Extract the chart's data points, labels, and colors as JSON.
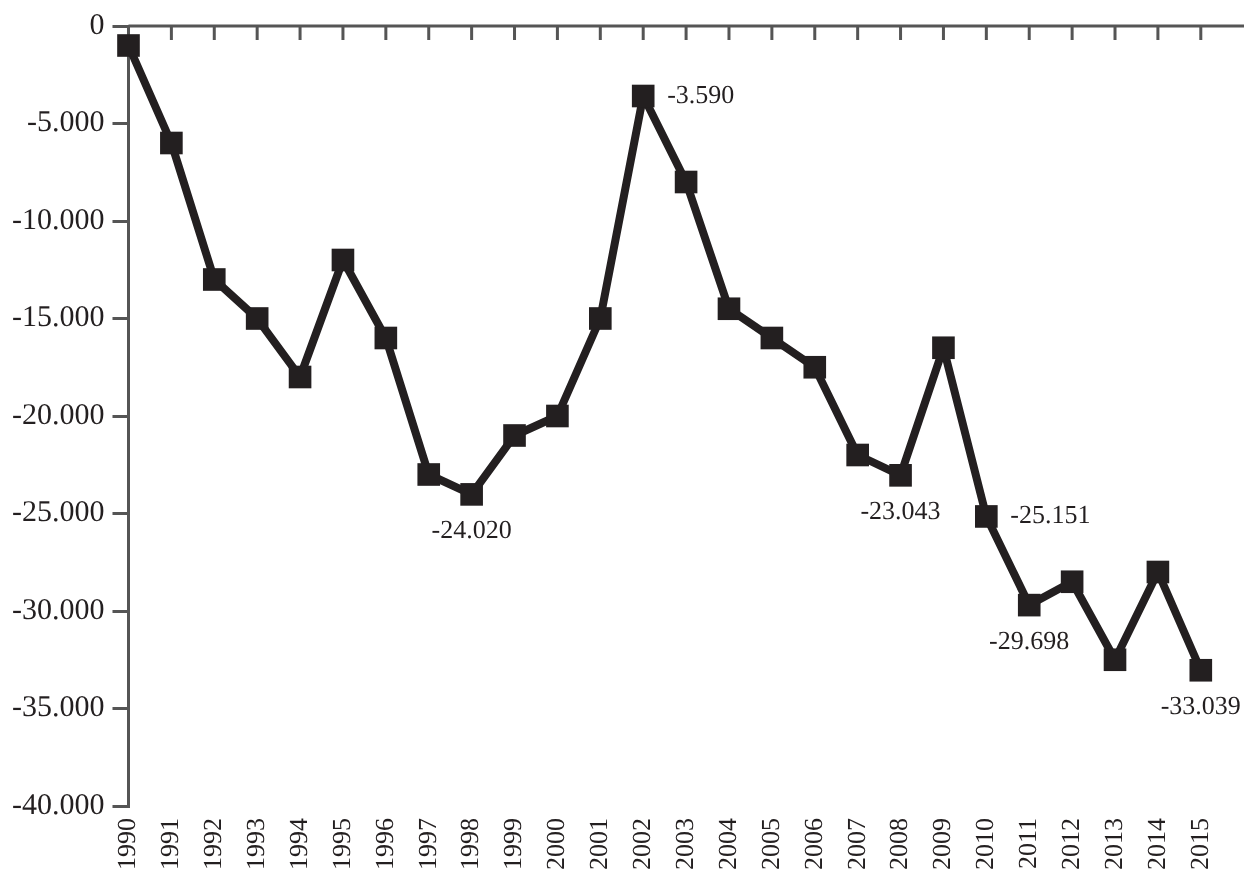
{
  "chart_data": {
    "type": "line",
    "categories": [
      "1990",
      "1991",
      "1992",
      "1993",
      "1994",
      "1995",
      "1996",
      "1997",
      "1998",
      "1999",
      "2000",
      "2001",
      "2002",
      "2003",
      "2004",
      "2005",
      "2006",
      "2007",
      "2008",
      "2009",
      "2010",
      "2011",
      "2012",
      "2013",
      "2014",
      "2015"
    ],
    "series": [
      {
        "color": "#231f20",
        "values": [
          -1000,
          -6000,
          -13000,
          -15000,
          -18000,
          -12000,
          -16000,
          -23000,
          -24020,
          -21000,
          -20000,
          -15000,
          -3590,
          -8000,
          -14500,
          -16000,
          -17500,
          -22000,
          -23043,
          -16500,
          -25151,
          -29698,
          -28500,
          -32500,
          -28000,
          -33039
        ],
        "value_labels": [
          null,
          null,
          null,
          null,
          null,
          null,
          null,
          null,
          "-24.020",
          null,
          null,
          null,
          "-3.590",
          null,
          null,
          null,
          null,
          null,
          "-23.043",
          null,
          "-25.151",
          "-29.698",
          null,
          null,
          null,
          "-33.039"
        ]
      }
    ],
    "ylim": [
      -40000,
      0
    ],
    "yticks": [
      {
        "value": -40000,
        "label": "-40.000"
      },
      {
        "value": -35000,
        "label": "-35.000"
      },
      {
        "value": -30000,
        "label": "-30.000"
      },
      {
        "value": -25000,
        "label": "-25.000"
      },
      {
        "value": -20000,
        "label": "-20.000"
      },
      {
        "value": -15000,
        "label": "-15.000"
      },
      {
        "value": -10000,
        "label": "-10.000"
      },
      {
        "value": -5000,
        "label": "-5.000"
      },
      0
    ],
    "grid": false,
    "legend": false,
    "marker": "square",
    "line_style": "solid"
  }
}
